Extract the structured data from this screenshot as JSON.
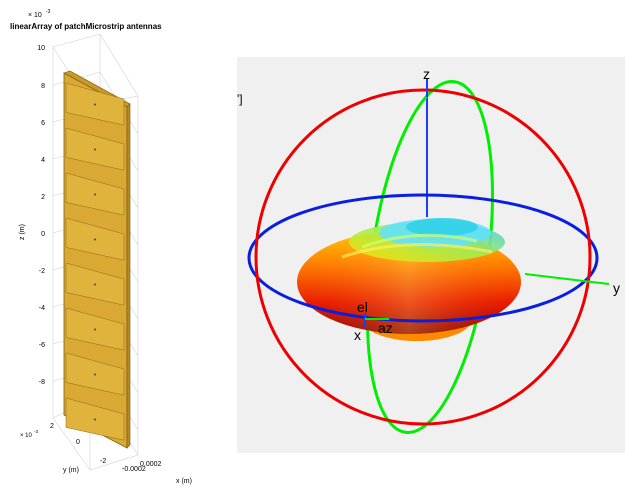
{
  "left_plot": {
    "title": "linearArray of patchMicrostrip antennas",
    "exponent_top": "× 10",
    "exponent_top_power": "-3",
    "z_label": "z (m)",
    "y_label": "y (m)",
    "x_label": "x (m)",
    "y_exponent": "× 10",
    "y_exponent_power": "-3",
    "z_ticks": [
      "10",
      "8",
      "6",
      "4",
      "2",
      "0",
      "-2",
      "-4",
      "-6",
      "-8"
    ],
    "y_ticks": [
      "2",
      "0",
      "-2"
    ],
    "x_ticks": [
      "-0.0002",
      "0.0002"
    ],
    "element_count": 8,
    "patch_color": "#e0b33c"
  },
  "right_plot": {
    "partial_label": "']",
    "axis_labels": {
      "z": "z",
      "y": "y",
      "x": "x",
      "el": "el",
      "az": "az"
    },
    "colors": {
      "elevation_circle": "#ff0000",
      "azimuth_circle": "#0000ff",
      "green_circle": "#00ee00"
    }
  }
}
